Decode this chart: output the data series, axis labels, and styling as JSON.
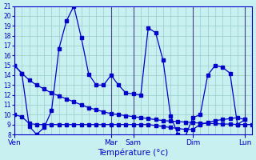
{
  "title": "Température (°c)",
  "bg_color": "#c8f0f0",
  "line_color": "#0000cc",
  "grid_color": "#99cccc",
  "ylim": [
    8,
    21
  ],
  "yticks": [
    8,
    9,
    10,
    11,
    12,
    13,
    14,
    15,
    16,
    17,
    18,
    19,
    20,
    21
  ],
  "x_day_labels": [
    "Ven",
    "Mar",
    "Sam",
    "Dim",
    "Lun"
  ],
  "x_day_positions": [
    0,
    13,
    16,
    24,
    31
  ],
  "xlim": [
    0,
    32
  ],
  "vlines": [
    0,
    13,
    16,
    24,
    31
  ],
  "line1_x": [
    0,
    1,
    2,
    3,
    4,
    5,
    6,
    7,
    8,
    9,
    10,
    11,
    12,
    13,
    14,
    15,
    16,
    17,
    18,
    19,
    20,
    21,
    22,
    23,
    24,
    25,
    26,
    27,
    28,
    29,
    30,
    31,
    32
  ],
  "line1_y": [
    15.0,
    14.2,
    13.5,
    13.0,
    12.6,
    12.2,
    11.9,
    11.6,
    11.3,
    11.0,
    10.7,
    10.5,
    10.3,
    10.1,
    10.0,
    9.9,
    9.8,
    9.7,
    9.6,
    9.5,
    9.4,
    9.35,
    9.3,
    9.25,
    9.2,
    9.15,
    9.1,
    9.1,
    9.05,
    9.05,
    9.0,
    9.0,
    9.0
  ],
  "line2_x": [
    0,
    1,
    2,
    3,
    4,
    5,
    6,
    7,
    8,
    9,
    10,
    11,
    12,
    13,
    14,
    15,
    16,
    17,
    18,
    19,
    20,
    21,
    22,
    23,
    24,
    25,
    26,
    27,
    28,
    29,
    30,
    31
  ],
  "line2_y": [
    15.0,
    14.2,
    8.8,
    8.0,
    8.7,
    10.4,
    16.7,
    19.5,
    21.0,
    17.8,
    14.1,
    13.0,
    13.0,
    14.0,
    13.0,
    12.2,
    12.1,
    12.0,
    18.8,
    18.3,
    15.5,
    9.9,
    8.0,
    7.8,
    9.7,
    10.0,
    14.0,
    15.0,
    14.8,
    14.2,
    9.0,
    9.5
  ],
  "line3_x": [
    0,
    1,
    2,
    3,
    4,
    5,
    6,
    7,
    8,
    9,
    10,
    11,
    12,
    13,
    14,
    15,
    16,
    17,
    18,
    19,
    20,
    21,
    22,
    23,
    24,
    25,
    26,
    27,
    28,
    29,
    30,
    31
  ],
  "line3_y": [
    10.0,
    9.8,
    9.1,
    9.0,
    9.0,
    9.0,
    9.0,
    9.0,
    9.0,
    9.0,
    9.0,
    9.0,
    9.0,
    9.0,
    9.0,
    9.0,
    9.0,
    9.0,
    9.0,
    8.9,
    8.8,
    8.7,
    8.6,
    8.5,
    8.5,
    9.0,
    9.2,
    9.4,
    9.5,
    9.6,
    9.7,
    9.5
  ]
}
